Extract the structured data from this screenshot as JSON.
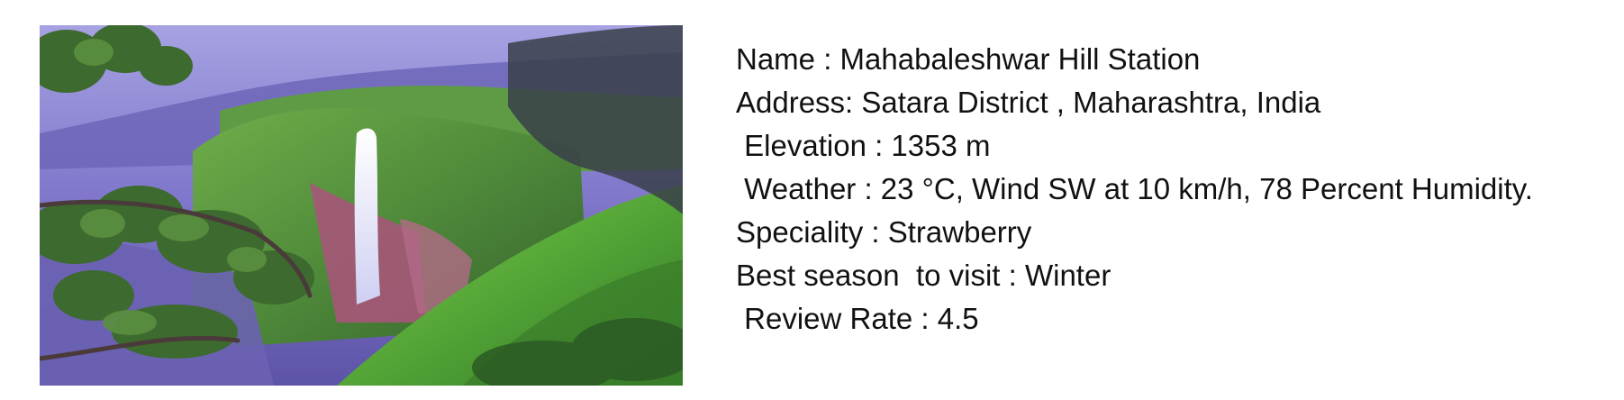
{
  "photo": {
    "subject": "waterfall-valley-photo",
    "colors": {
      "sky": "#8f8ad6",
      "haze": "#7770c4",
      "foliage": "#4ea534",
      "foliage_dark": "#2f3f2a",
      "cliff": "#a8577a",
      "water": "#f2f2ff"
    }
  },
  "info": {
    "name_line": "Name : Mahabaleshwar Hill Station",
    "address_line": "Address: Satara District , Maharashtra, India",
    "elevation_line": " Elevation : 1353 m",
    "weather_line": " Weather : 23 °C, Wind SW at 10 km/h, 78 Percent Humidity.",
    "speciality_line": "Speciality : Strawberry",
    "best_season_line": "Best season  to visit : Winter",
    "review_rate_line": " Review Rate : 4.5"
  },
  "text_color": "#111111"
}
